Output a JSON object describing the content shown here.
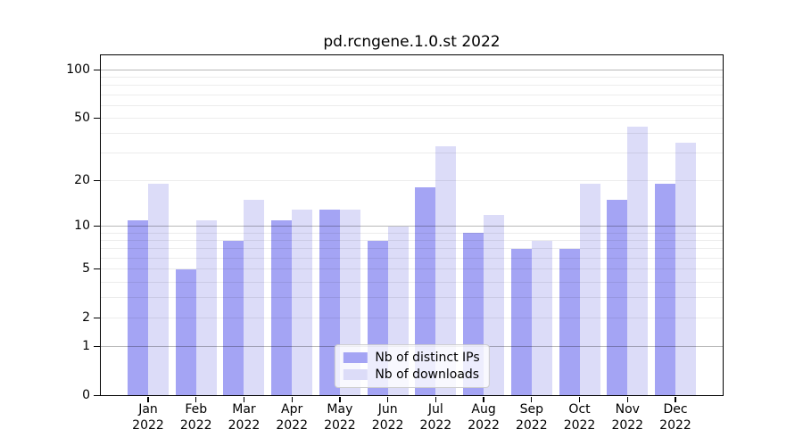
{
  "chart_data": {
    "type": "bar",
    "title": "pd.rcngene.1.0.st 2022",
    "categories": [
      "Jan",
      "Feb",
      "Mar",
      "Apr",
      "May",
      "Jun",
      "Jul",
      "Aug",
      "Sep",
      "Oct",
      "Nov",
      "Dec"
    ],
    "year_label": "2022",
    "series": [
      {
        "name": "Nb of distinct IPs",
        "color": "#a4a4f4",
        "values": [
          11,
          5,
          8,
          11,
          13,
          8,
          18,
          9,
          7,
          7,
          15,
          19
        ]
      },
      {
        "name": "Nb of downloads",
        "color": "#dcdcf8",
        "values": [
          19,
          11,
          15,
          13,
          13,
          10,
          33,
          12,
          8,
          19,
          44,
          35
        ]
      }
    ],
    "yscale": "log1p",
    "ylim": [
      0,
      123
    ],
    "yticks": [
      0,
      1,
      2,
      5,
      10,
      20,
      50,
      100
    ],
    "major_gridlines": [
      1,
      10,
      100
    ],
    "minor_gridlines": [
      2,
      3,
      4,
      5,
      6,
      7,
      8,
      9,
      20,
      30,
      40,
      50,
      60,
      70,
      80,
      90
    ],
    "grid": "horizontal-only",
    "legend_position": "lower center",
    "xlabel": "",
    "ylabel": ""
  },
  "colors": {
    "background": "#ffffff",
    "axis": "#000000",
    "major_grid": "rgba(0,0,0,0.28)",
    "minor_grid": "rgba(0,0,0,0.075)",
    "legend_border": "#cccccc",
    "legend_background": "rgba(255,255,255,0.8)"
  }
}
